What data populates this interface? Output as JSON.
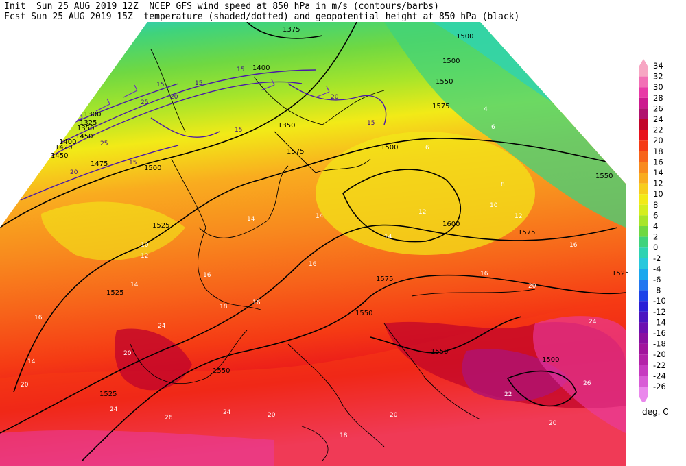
{
  "header": {
    "line1": "Init  Sun 25 AUG 2019 12Z  NCEP GFS wind speed at 850 hPa in m/s (contours/barbs)",
    "line2": "Fcst Sun 25 AUG 2019 15Z  temperature (shaded/dotted) and geopotential height at 850 hPa (black)"
  },
  "legend": {
    "units": "deg. C",
    "levels": [
      "34",
      "32",
      "30",
      "28",
      "26",
      "24",
      "22",
      "20",
      "18",
      "16",
      "14",
      "12",
      "10",
      "8",
      "6",
      "4",
      "2",
      "0",
      "-2",
      "-4",
      "-6",
      "-8",
      "-10",
      "-12",
      "-14",
      "-16",
      "-18",
      "-20",
      "-22",
      "-24",
      "-26"
    ],
    "colors": [
      "#f7a6c3",
      "#f26fb5",
      "#e83aa6",
      "#cc1a8e",
      "#b0126e",
      "#c2052a",
      "#e8121c",
      "#f53a14",
      "#f7641a",
      "#f88a1e",
      "#f9ac1f",
      "#f7cd1d",
      "#f2ea17",
      "#d4ee1f",
      "#a7e52a",
      "#6fd842",
      "#3fd37c",
      "#2ed3b2",
      "#28c8dc",
      "#1aa7ee",
      "#2277f0",
      "#1d43e8",
      "#2a1fd6",
      "#4a15c0",
      "#6d10b0",
      "#8a0fa0",
      "#a1149c",
      "#b322a8",
      "#c63ac0",
      "#d85cd6",
      "#ea88ec"
    ]
  },
  "map": {
    "height_labels": [
      "1375",
      "1500",
      "1525",
      "1550",
      "1575",
      "1600",
      "1300",
      "1325",
      "1350",
      "1400",
      "1420",
      "1450",
      "1475"
    ],
    "temp_labels": [
      "2",
      "4",
      "6",
      "8",
      "10",
      "12",
      "14",
      "16",
      "18",
      "20",
      "22",
      "24",
      "26"
    ],
    "wind_labels": [
      "15",
      "20",
      "25"
    ]
  }
}
